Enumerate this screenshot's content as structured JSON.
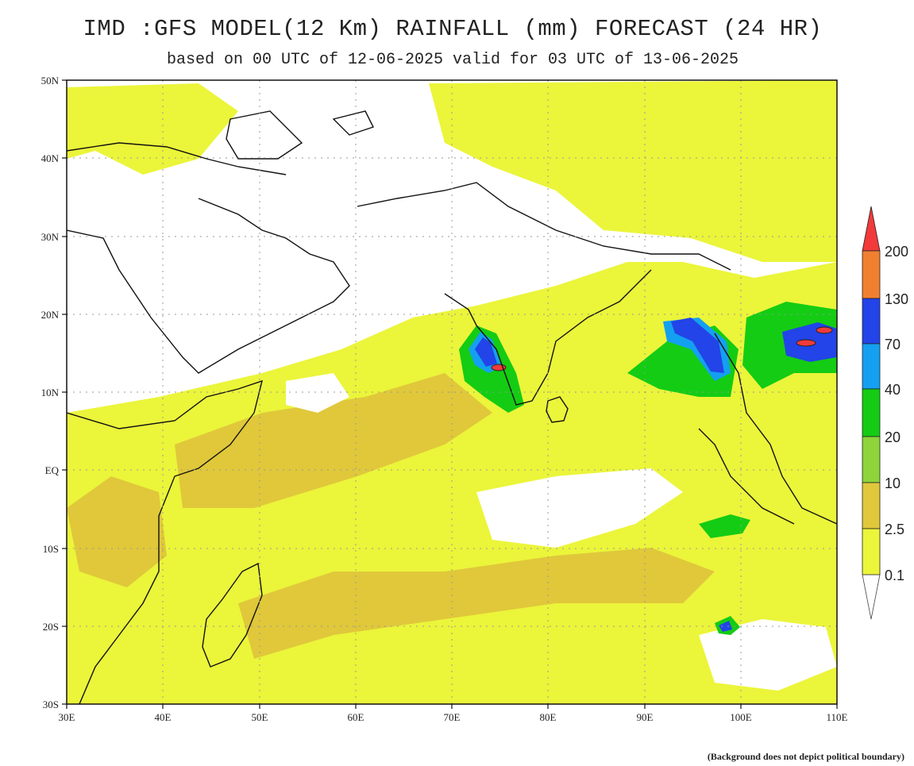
{
  "title": "IMD :GFS MODEL(12 Km) RAINFALL (mm) FORECAST (24 HR)",
  "subtitle": "based on 00 UTC of 12-06-2025 valid for 03 UTC of 13-06-2025",
  "footnote": "(Background does not depict political boundary)",
  "lat_labels": [
    "50N",
    "40N",
    "30N",
    "20N",
    "10N",
    "EQ",
    "10S",
    "20S",
    "30S"
  ],
  "lon_labels": [
    "30E",
    "40E",
    "50E",
    "60E",
    "70E",
    "80E",
    "90E",
    "100E",
    "110E"
  ],
  "legend": {
    "thresholds": [
      "200",
      "130",
      "70",
      "40",
      "20",
      "10",
      "2.5",
      "0.1"
    ],
    "colors": {
      "gt200": "#f23a3a",
      "130-200": "#f08030",
      "70-130": "#2244e8",
      "40-70": "#14a0f0",
      "20-40": "#14cc14",
      "10-20": "#8ed43a",
      "2.5-10": "#e0c83a",
      "0.1-2.5": "#ebf53a"
    }
  }
}
